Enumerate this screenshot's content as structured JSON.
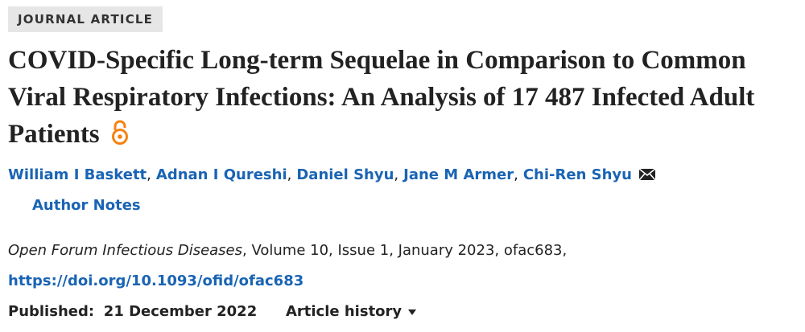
{
  "header": {
    "label": "JOURNAL ARTICLE"
  },
  "title": "COVID-Specific Long-term Sequelae in Comparison to Common Viral Respiratory Infections: An Analysis of 17 487 Infected Adult Patients",
  "authors": {
    "names": [
      "William I Baskett",
      "Adnan I Qureshi",
      "Daniel Shyu",
      "Jane M Armer",
      "Chi-Ren Shyu"
    ],
    "separator": ","
  },
  "author_notes": "Author Notes",
  "citation": {
    "journal": "Open Forum Infectious Diseases",
    "details": ", Volume 10, Issue 1, January 2023, ofac683,"
  },
  "doi": "https://doi.org/10.1093/ofid/ofac683",
  "published": {
    "label": "Published:",
    "date": "21 December 2022"
  },
  "article_history": "Article history"
}
